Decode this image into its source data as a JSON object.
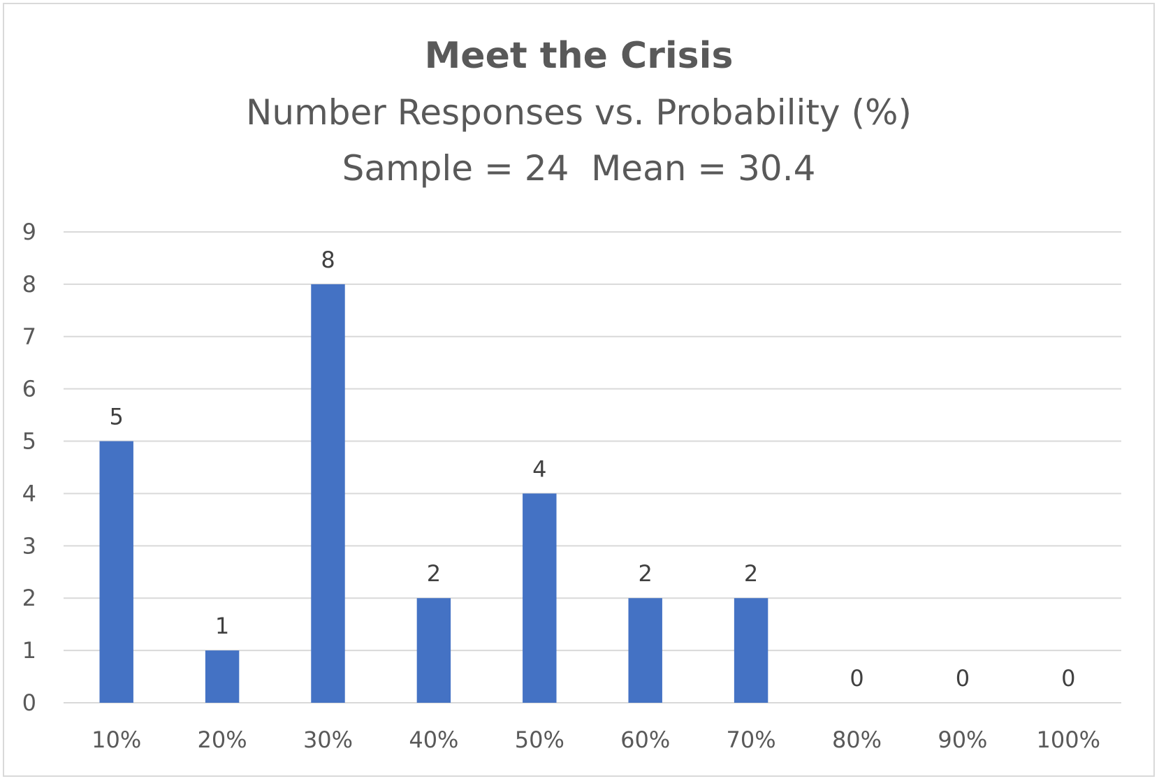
{
  "chart_data": {
    "type": "bar",
    "title": "Meet the Crisis",
    "subtitle_lines": [
      "Number Responses vs. Probability (%)",
      "Sample = 24  Mean = 30.4"
    ],
    "categories": [
      "10%",
      "20%",
      "30%",
      "40%",
      "50%",
      "60%",
      "70%",
      "80%",
      "90%",
      "100%"
    ],
    "values": [
      5,
      1,
      8,
      2,
      4,
      2,
      2,
      0,
      0,
      0
    ],
    "data_labels": [
      "5",
      "1",
      "8",
      "2",
      "4",
      "2",
      "2",
      "0",
      "0",
      "0"
    ],
    "y_ticks": [
      "0",
      "1",
      "2",
      "3",
      "4",
      "5",
      "6",
      "7",
      "8",
      "9"
    ],
    "ylim": [
      0,
      9
    ],
    "xlabel": "",
    "ylabel": "",
    "grid": true,
    "legend": "none",
    "colors": {
      "bar": "#4472c4",
      "grid": "#d9d9d9",
      "text": "#595959",
      "data_label": "#404040",
      "border": "#d9d9d9"
    }
  }
}
